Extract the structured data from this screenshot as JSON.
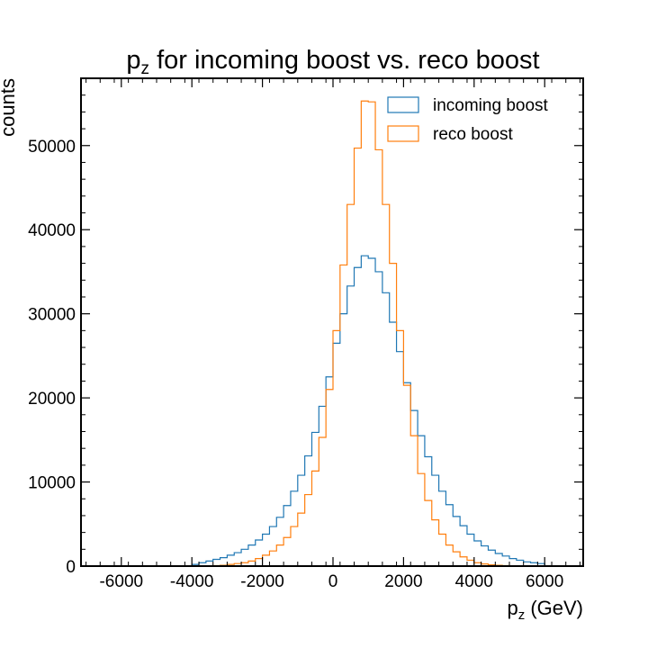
{
  "chart_data": {
    "type": "histogram-step",
    "title": {
      "main": "p",
      "sub": "z",
      "rest": " for incoming boost vs. reco boost"
    },
    "xlabel": {
      "main": "p",
      "sub": "z",
      "rest": " (GeV)"
    },
    "ylabel": "counts",
    "xlim": [
      -7000,
      7100
    ],
    "ylim": [
      0,
      58000
    ],
    "xticks": [
      -6000,
      -4000,
      -2000,
      0,
      2000,
      4000,
      6000
    ],
    "yticks": [
      0,
      10000,
      20000,
      30000,
      40000,
      50000
    ],
    "bin_width": 200,
    "bins_start": -4000,
    "legend_position": "top-right",
    "grid": false,
    "series": [
      {
        "name": "incoming boost",
        "color": "#1f77b4",
        "values": [
          200,
          400,
          600,
          800,
          1000,
          1300,
          1600,
          2000,
          2500,
          3100,
          3800,
          4700,
          5800,
          7200,
          8900,
          10800,
          13100,
          15900,
          19000,
          22500,
          26500,
          30000,
          33300,
          35500,
          36900,
          36600,
          35000,
          32500,
          29000,
          25500,
          21800,
          18500,
          15500,
          13000,
          10800,
          8900,
          7300,
          5900,
          4800,
          3800,
          3000,
          2400,
          1900,
          1500,
          1200,
          900,
          700,
          500,
          400,
          300
        ]
      },
      {
        "name": "reco boost",
        "color": "#ff7f0e",
        "values": [
          0,
          0,
          0,
          50,
          100,
          200,
          300,
          400,
          600,
          900,
          1300,
          1800,
          2500,
          3400,
          4700,
          6300,
          8500,
          11300,
          15300,
          21000,
          28000,
          35800,
          43000,
          49700,
          55300,
          55200,
          49500,
          43000,
          36000,
          28000,
          21500,
          15500,
          11000,
          7800,
          5500,
          3800,
          2500,
          1700,
          1100,
          700,
          400,
          250,
          150,
          100,
          50,
          0,
          0,
          0,
          0,
          0
        ]
      }
    ]
  }
}
